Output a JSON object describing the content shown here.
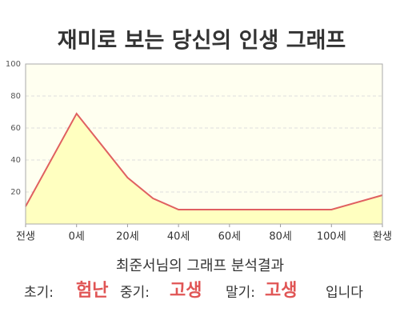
{
  "chart_data": {
    "type": "area",
    "title": "재미로 보는 당신의 인생 그래프",
    "x": [
      -20,
      0,
      20,
      30,
      40,
      100,
      120
    ],
    "values": [
      11,
      69,
      29,
      16,
      9,
      9,
      18
    ],
    "color": "#e06060",
    "fill": "#ffffc0",
    "background": "#fffff0",
    "xlim": [
      -20,
      120
    ],
    "xticks": [
      {
        "value": -20,
        "label": "전생"
      },
      {
        "value": 0,
        "label": "0세"
      },
      {
        "value": 20,
        "label": "20세"
      },
      {
        "value": 40,
        "label": "40세"
      },
      {
        "value": 60,
        "label": "60세"
      },
      {
        "value": 80,
        "label": "80세"
      },
      {
        "value": 100,
        "label": "100세"
      },
      {
        "value": 120,
        "label": "환생"
      }
    ],
    "ylim": [
      0,
      100
    ],
    "yticks": [
      20,
      40,
      60,
      80,
      100
    ],
    "grid": true,
    "result_title": "최준서님의 그래프 분석결과",
    "result": [
      {
        "label": "초기:",
        "value": "험난"
      },
      {
        "label": "중기:",
        "value": "고생"
      },
      {
        "label": "말기:",
        "value": "고생"
      }
    ],
    "ending": "입니다"
  }
}
